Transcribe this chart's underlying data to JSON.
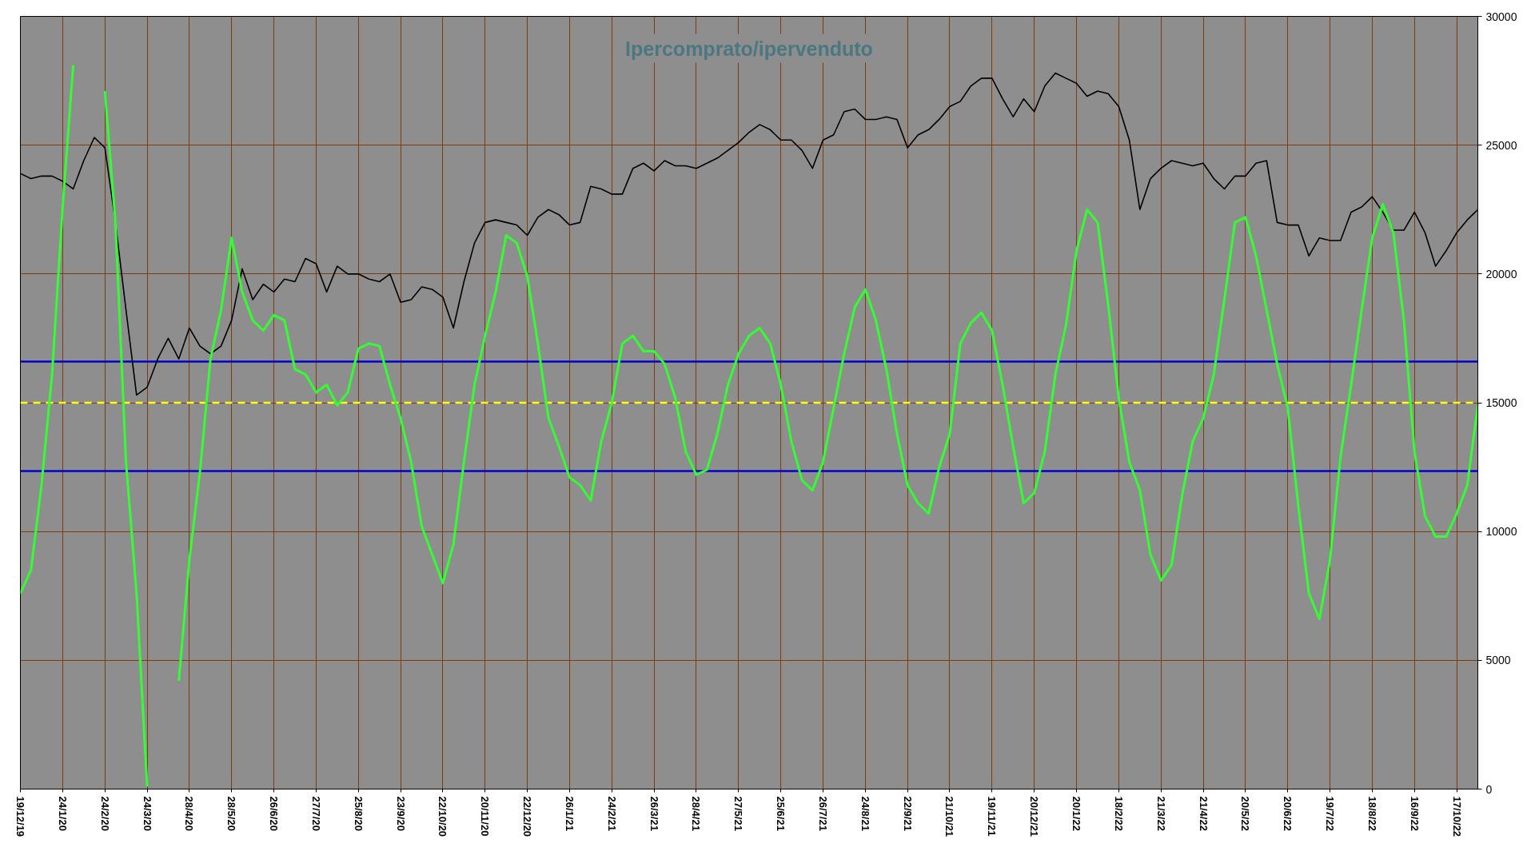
{
  "chart_data": {
    "type": "line",
    "title": "Ipercomprato/ipervenduto",
    "categories": [
      "19/12/19",
      null,
      null,
      null,
      "24/1/20",
      null,
      null,
      null,
      "24/2/20",
      null,
      null,
      null,
      "24/3/20",
      null,
      null,
      null,
      "28/4/20",
      null,
      null,
      null,
      "28/5/20",
      null,
      null,
      null,
      "26/6/20",
      null,
      null,
      null,
      "27/7/20",
      null,
      null,
      null,
      "25/8/20",
      null,
      null,
      null,
      "23/9/20",
      null,
      null,
      null,
      "22/10/20",
      null,
      null,
      null,
      "20/11/20",
      null,
      null,
      null,
      "22/12/20",
      null,
      null,
      null,
      "26/1/21",
      null,
      null,
      null,
      "24/2/21",
      null,
      null,
      null,
      "26/3/21",
      null,
      null,
      null,
      "28/4/21",
      null,
      null,
      null,
      "27/5/21",
      null,
      null,
      null,
      "25/6/21",
      null,
      null,
      null,
      "26/7/21",
      null,
      null,
      null,
      "24/8/21",
      null,
      null,
      null,
      "22/9/21",
      null,
      null,
      null,
      "21/10/21",
      null,
      null,
      null,
      "19/11/21",
      null,
      null,
      null,
      "20/12/21",
      null,
      null,
      null,
      "20/1/22",
      null,
      null,
      null,
      "18/2/22",
      null,
      null,
      null,
      "21/3/22",
      null,
      null,
      null,
      "21/4/22",
      null,
      null,
      null,
      "20/5/22",
      null,
      null,
      null,
      "20/6/22",
      null,
      null,
      null,
      "19/7/22",
      null,
      null,
      null,
      "18/8/22",
      null,
      null,
      null,
      "16/9/22",
      null,
      null,
      null,
      "17/10/22",
      null,
      null
    ],
    "series": [
      {
        "color": "#000000",
        "values": [
          23900,
          23700,
          23800,
          23800,
          23600,
          23300,
          24400,
          25300,
          24900,
          22000,
          18600,
          15300,
          15600,
          16700,
          17500,
          16700,
          17900,
          17200,
          16900,
          17200,
          18200,
          20200,
          19000,
          19600,
          19300,
          19800,
          19700,
          20600,
          20400,
          19300,
          20300,
          20000,
          20000,
          19800,
          19700,
          20000,
          18900,
          19000,
          19500,
          19400,
          19100,
          17900,
          19700,
          21200,
          22000,
          22100,
          22000,
          21900,
          21500,
          22200,
          22500,
          22300,
          21900,
          22000,
          23400,
          23300,
          23100,
          23100,
          24100,
          24300,
          24000,
          24400,
          24200,
          24200,
          24100,
          24300,
          24500,
          24800,
          25100,
          25500,
          25800,
          25600,
          25200,
          25200,
          24800,
          24100,
          25200,
          25400,
          26300,
          26400,
          26000,
          26000,
          26100,
          26000,
          24900,
          25400,
          25600,
          26000,
          26500,
          26700,
          27300,
          27600,
          27600,
          26800,
          26100,
          26800,
          26300,
          27300,
          27800,
          27600,
          27400,
          26900,
          27100,
          27000,
          26500,
          25200,
          22500,
          23700,
          24100,
          24400,
          24300,
          24200,
          24300,
          23700,
          23300,
          23800,
          23800,
          24300,
          24400,
          22000,
          21900,
          21900,
          20700,
          21400,
          21300,
          21300,
          22400,
          22600,
          23000,
          22400,
          21700,
          21700,
          22400,
          21600,
          20300,
          20900,
          21600,
          22100,
          22500
        ]
      },
      {
        "color": "#33ff33",
        "values": [
          7600,
          8500,
          11800,
          16100,
          22600,
          28100,
          null,
          null,
          27100,
          22000,
          12700,
          7600,
          100,
          null,
          null,
          4200,
          8900,
          12300,
          16700,
          18600,
          21400,
          19300,
          18200,
          17800,
          18400,
          18200,
          16300,
          16100,
          15400,
          15700,
          14900,
          15400,
          17100,
          17300,
          17200,
          15700,
          14400,
          12700,
          10200,
          9100,
          8000,
          9500,
          12700,
          15700,
          17600,
          19300,
          21500,
          21200,
          19900,
          17300,
          14400,
          13300,
          12100,
          11800,
          11200,
          13500,
          15000,
          17300,
          17600,
          17000,
          17000,
          16500,
          15200,
          13100,
          12200,
          12400,
          13800,
          15700,
          16900,
          17600,
          17900,
          17300,
          15700,
          13500,
          12000,
          11600,
          12700,
          14800,
          16900,
          18700,
          19400,
          18200,
          16300,
          13800,
          11800,
          11100,
          10700,
          12500,
          13800,
          17300,
          18100,
          18500,
          17800,
          15700,
          13300,
          11100,
          11500,
          13100,
          16100,
          18000,
          20900,
          22500,
          22000,
          18800,
          15200,
          12700,
          11600,
          9100,
          8100,
          8700,
          11400,
          13500,
          14400,
          16100,
          19000,
          22000,
          22200,
          20700,
          18600,
          16500,
          14800,
          11000,
          7600,
          6600,
          8900,
          12900,
          15700,
          18600,
          21400,
          22700,
          21600,
          18200,
          13100,
          10600,
          9800,
          9800,
          10700,
          11800,
          14900
        ]
      }
    ],
    "ylim": [
      0,
      30000
    ],
    "yticks": [
      0,
      5000,
      10000,
      15000,
      20000,
      25000,
      30000
    ],
    "grid": true,
    "ref_lines": [
      {
        "axis": "y",
        "value": 16600,
        "color": "#0000cc"
      },
      {
        "axis": "y",
        "value": 15000,
        "color": "#ffff00",
        "line_style": "dashed"
      },
      {
        "axis": "y",
        "value": 12350,
        "color": "#0000cc"
      }
    ]
  }
}
